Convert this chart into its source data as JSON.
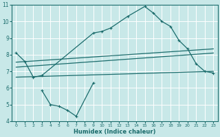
{
  "xlabel": "Humidex (Indice chaleur)",
  "bg_color": "#c8e8e8",
  "grid_color": "#b8d8d8",
  "line_color": "#1a6b6b",
  "xlim": [
    -0.5,
    23.5
  ],
  "ylim": [
    4,
    11
  ],
  "xticks": [
    0,
    1,
    2,
    3,
    4,
    5,
    6,
    7,
    8,
    9,
    10,
    11,
    12,
    13,
    14,
    15,
    16,
    17,
    18,
    19,
    20,
    21,
    22,
    23
  ],
  "yticks": [
    4,
    5,
    6,
    7,
    8,
    9,
    10,
    11
  ],
  "curve1_x": [
    0,
    1,
    2,
    3,
    9,
    10,
    11,
    13,
    15,
    16,
    17,
    18,
    19,
    20,
    21,
    22,
    23
  ],
  "curve1_y": [
    8.1,
    7.6,
    6.65,
    6.75,
    9.3,
    9.4,
    9.6,
    10.3,
    10.9,
    10.5,
    10.0,
    9.7,
    8.85,
    8.35,
    7.45,
    7.0,
    6.9
  ],
  "curve2_x": [
    0,
    23
  ],
  "curve2_y": [
    7.55,
    8.35
  ],
  "curve3_x": [
    0,
    23
  ],
  "curve3_y": [
    7.25,
    8.1
  ],
  "curve4_x": [
    0,
    23
  ],
  "curve4_y": [
    6.65,
    7.0
  ],
  "curve5_x": [
    3,
    4,
    5,
    6,
    7,
    9
  ],
  "curve5_y": [
    5.85,
    5.0,
    4.9,
    4.65,
    4.3,
    6.3
  ]
}
